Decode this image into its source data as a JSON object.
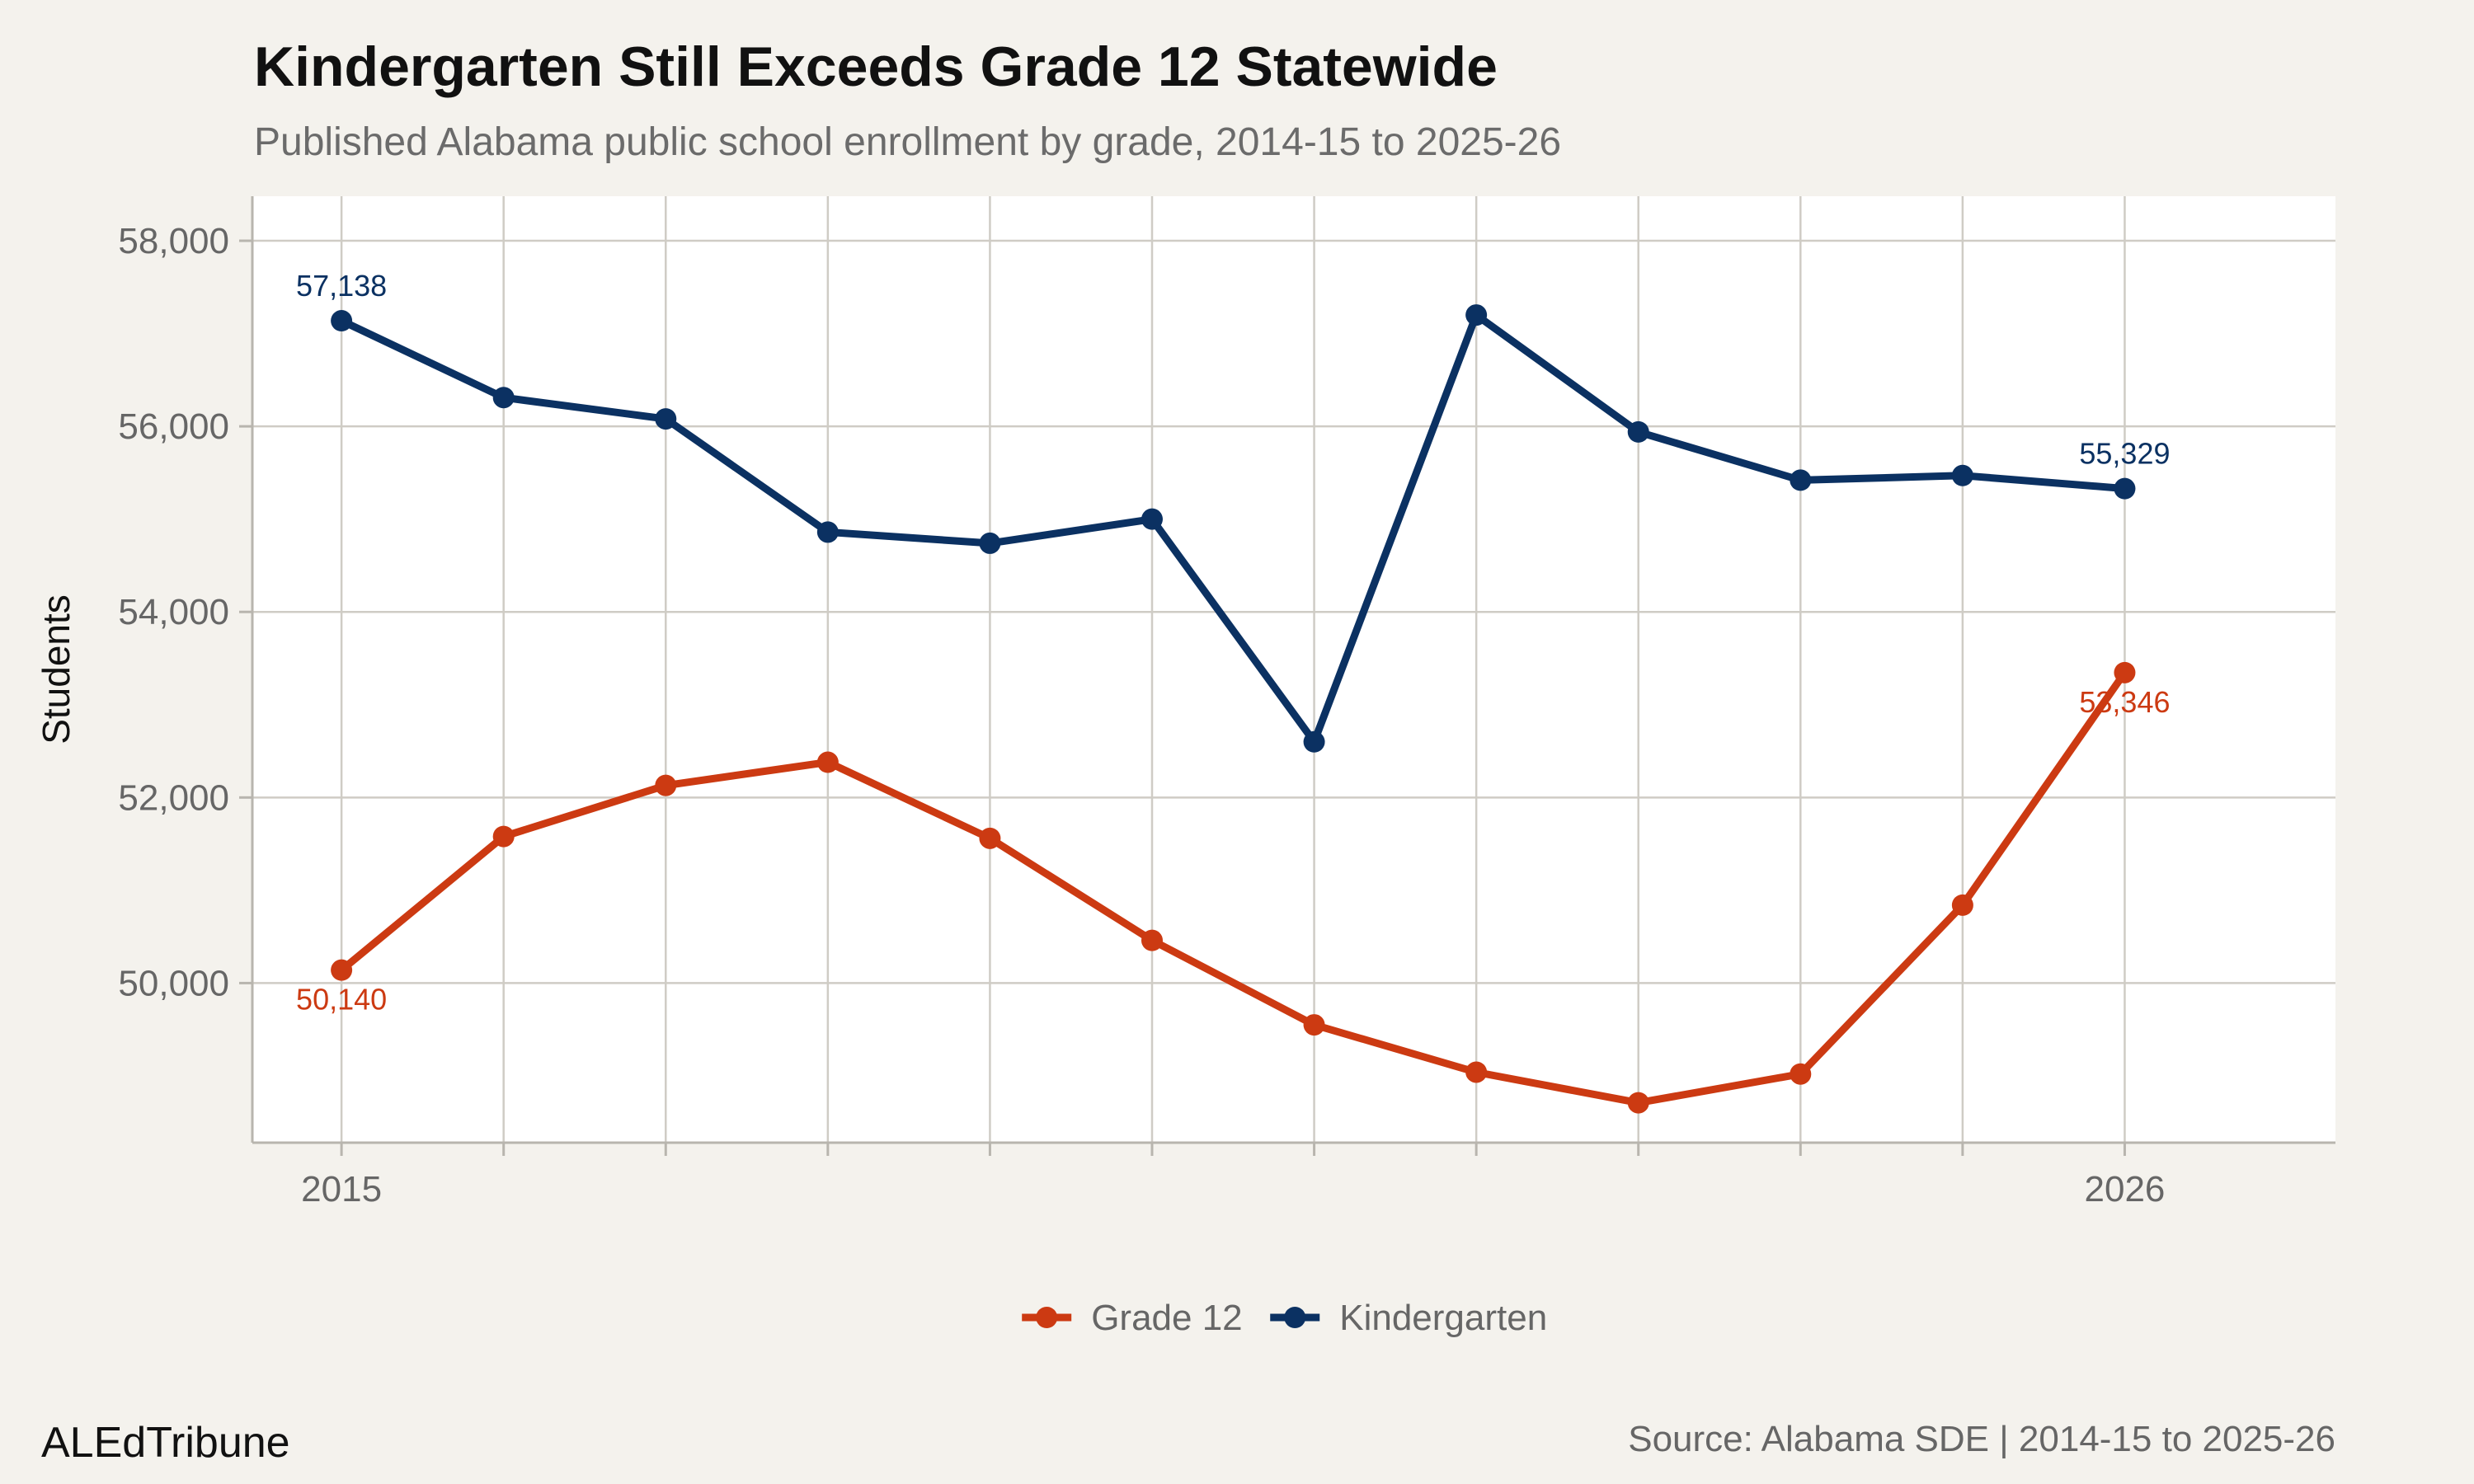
{
  "chart_data": {
    "type": "line",
    "title": "Kindergarten Still Exceeds Grade 12 Statewide",
    "subtitle": "Published Alabama public school enrollment by grade, 2014-15 to 2025-26",
    "xlabel": "",
    "ylabel": "Students",
    "x": [
      2015,
      2016,
      2017,
      2018,
      2019,
      2020,
      2021,
      2022,
      2023,
      2024,
      2025,
      2026
    ],
    "x_tick_labels": [
      "2015",
      "2026"
    ],
    "x_tick_label_positions": [
      2015,
      2026
    ],
    "xlim": [
      2014.45,
      2027.3
    ],
    "ylim": [
      48280,
      58480
    ],
    "y_ticks": [
      50000,
      52000,
      54000,
      56000,
      58000
    ],
    "y_tick_labels": [
      "50,000",
      "52,000",
      "54,000",
      "56,000",
      "58,000"
    ],
    "grid": true,
    "legend_position": "bottom",
    "series": [
      {
        "name": "Grade 12",
        "color": "#cc3a12",
        "values": [
          50140,
          51580,
          52130,
          52380,
          51560,
          50460,
          49550,
          49040,
          48710,
          49020,
          50840,
          53346
        ],
        "labels": [
          {
            "index": 0,
            "text": "50,140",
            "position": "below"
          },
          {
            "index": 11,
            "text": "53,346",
            "position": "below"
          }
        ]
      },
      {
        "name": "Kindergarten",
        "color": "#0b3162",
        "values": [
          57138,
          56310,
          56080,
          54860,
          54740,
          55000,
          52600,
          57200,
          55940,
          55420,
          55470,
          55329
        ],
        "labels": [
          {
            "index": 0,
            "text": "57,138",
            "position": "above"
          },
          {
            "index": 11,
            "text": "55,329",
            "position": "above"
          }
        ]
      }
    ]
  },
  "footer": {
    "brand": "ALEdTribune",
    "source": "Source: Alabama SDE | 2014-15 to 2025-26"
  },
  "colors": {
    "background": "#f4f2ed",
    "panel": "#ffffff",
    "grid": "#cfccc5"
  }
}
